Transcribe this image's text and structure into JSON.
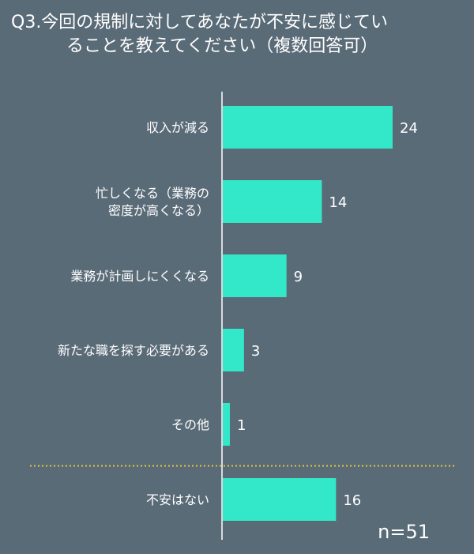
{
  "title": {
    "line1": "Q3.今回の規制に対してあなたが不安に感じてい",
    "line2": "ることを教えてください（複数回答可）"
  },
  "sample_size": "n=51",
  "colors": {
    "bar": "#33e8c8",
    "background": "#5a6b78",
    "divider": "#e8c33a",
    "axis": "#ffffff"
  },
  "chart_data": {
    "type": "bar",
    "orientation": "horizontal",
    "title": "Q3.今回の規制に対してあなたが不安に感じていることを教えてください（複数回答可）",
    "categories": [
      [
        "収入が減る"
      ],
      [
        "忙しくなる（業務の",
        "密度が高くなる）"
      ],
      [
        "業務が計画しにくくなる"
      ],
      [
        "新たな職を探す必要がある"
      ],
      [
        "その他"
      ],
      [
        "不安はない"
      ]
    ],
    "values": [
      24,
      14,
      9,
      3,
      1,
      16
    ],
    "value_labels": [
      "24",
      "14",
      "9",
      "3",
      "1",
      "16"
    ],
    "xlim": [
      0,
      24
    ],
    "grid": false,
    "divider_before_index": 5,
    "note": "n=51"
  }
}
